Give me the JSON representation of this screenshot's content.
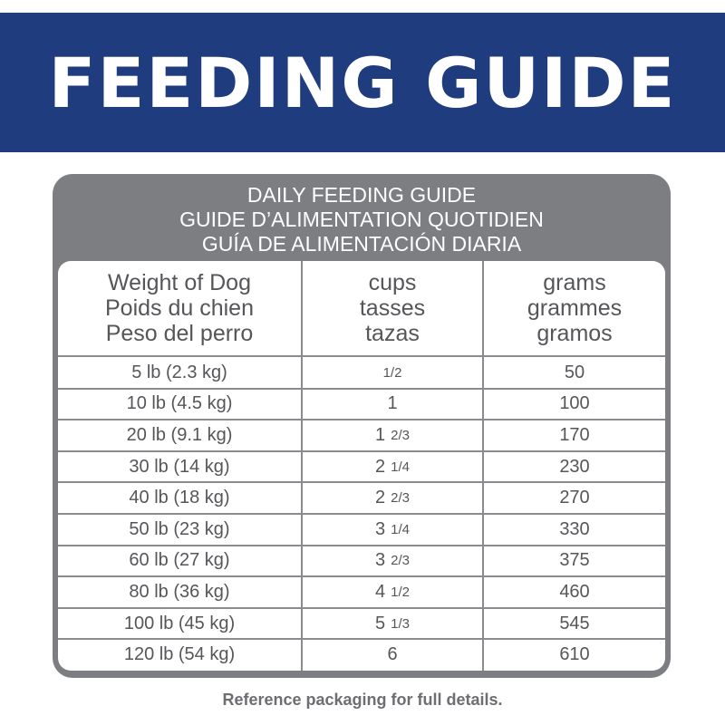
{
  "banner": {
    "title": "FEEDING GUIDE"
  },
  "card": {
    "header_lines": [
      "DAILY FEEDING GUIDE",
      "GUIDE D’ALIMENTATION QUOTIDIEN",
      "GUÍA DE ALIMENTACIÓN DIARIA"
    ]
  },
  "table": {
    "columns": [
      {
        "lines": [
          "Weight of Dog",
          "Poids du chien",
          "Peso del perro"
        ]
      },
      {
        "lines": [
          "cups",
          "tasses",
          "tazas"
        ]
      },
      {
        "lines": [
          "grams",
          "grammes",
          "gramos"
        ]
      }
    ],
    "rows": [
      {
        "weight": "5 lb (2.3 kg)",
        "cups_whole": "",
        "cups_frac": "1/2",
        "grams": "50"
      },
      {
        "weight": "10 lb (4.5 kg)",
        "cups_whole": "1",
        "cups_frac": "",
        "grams": "100"
      },
      {
        "weight": "20 lb (9.1 kg)",
        "cups_whole": "1",
        "cups_frac": "2/3",
        "grams": "170"
      },
      {
        "weight": "30 lb (14 kg)",
        "cups_whole": "2",
        "cups_frac": "1/4",
        "grams": "230"
      },
      {
        "weight": "40 lb (18 kg)",
        "cups_whole": "2",
        "cups_frac": "2/3",
        "grams": "270"
      },
      {
        "weight": "50 lb (23 kg)",
        "cups_whole": "3",
        "cups_frac": "1/4",
        "grams": "330"
      },
      {
        "weight": "60 lb (27 kg)",
        "cups_whole": "3",
        "cups_frac": "2/3",
        "grams": "375"
      },
      {
        "weight": "80 lb (36 kg)",
        "cups_whole": "4",
        "cups_frac": "1/2",
        "grams": "460"
      },
      {
        "weight": "100 lb (45 kg)",
        "cups_whole": "5",
        "cups_frac": "1/3",
        "grams": "545"
      },
      {
        "weight": "120 lb (54 kg)",
        "cups_whole": "6",
        "cups_frac": "",
        "grams": "610"
      }
    ]
  },
  "footer": {
    "note": "Reference packaging for full details."
  },
  "colors": {
    "banner": "#1f3c7e",
    "card": "#7d7e82",
    "text": "#555659"
  }
}
